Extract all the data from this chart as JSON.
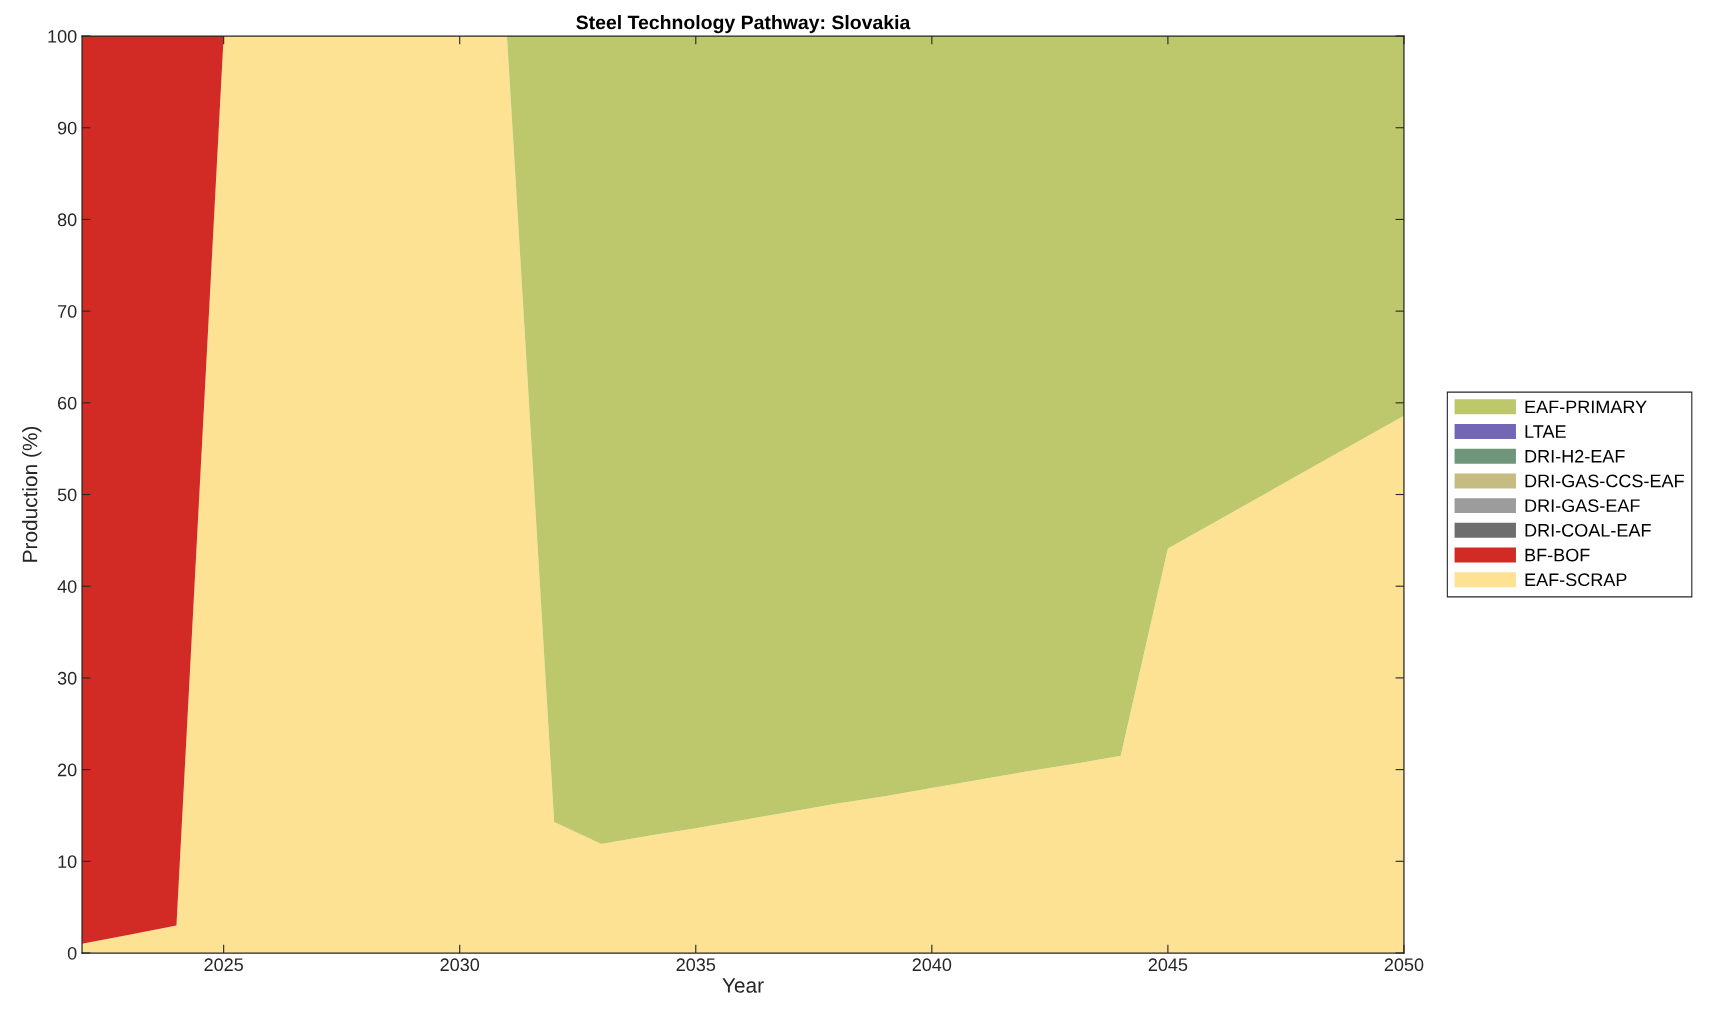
{
  "chart_data": {
    "type": "area",
    "stacked": true,
    "title": "Steel Technology Pathway: Slovakia",
    "xlabel": "Year",
    "ylabel": "Production (%)",
    "x": [
      2022,
      2023,
      2024,
      2025,
      2026,
      2027,
      2028,
      2029,
      2030,
      2031,
      2032,
      2033,
      2034,
      2035,
      2036,
      2037,
      2038,
      2039,
      2040,
      2041,
      2042,
      2043,
      2044,
      2045,
      2046,
      2047,
      2048,
      2049,
      2050
    ],
    "series": [
      {
        "name": "EAF-SCRAP",
        "color": "#fde294",
        "values": [
          1,
          2,
          3,
          100,
          100,
          100,
          100,
          100,
          100,
          100,
          14.3,
          11.9,
          12.8,
          13.6,
          14.5,
          15.4,
          16.3,
          17.1,
          18.0,
          18.9,
          19.8,
          20.6,
          21.5,
          44.1,
          47.0,
          49.9,
          52.8,
          55.7,
          58.6
        ]
      },
      {
        "name": "BF-BOF",
        "color": "#d22a24",
        "values": [
          99,
          98,
          97,
          0,
          0,
          0,
          0,
          0,
          0,
          0,
          0,
          0,
          0,
          0,
          0,
          0,
          0,
          0,
          0,
          0,
          0,
          0,
          0,
          0,
          0,
          0,
          0,
          0,
          0
        ]
      },
      {
        "name": "DRI-COAL-EAF",
        "color": "#6e6e6e",
        "values": [
          null,
          null,
          null,
          null,
          null,
          null,
          null,
          null,
          null,
          null,
          null,
          null,
          null,
          null,
          null,
          null,
          null,
          null,
          null,
          null,
          null,
          null,
          null,
          null,
          null,
          null,
          null,
          null,
          null
        ]
      },
      {
        "name": "DRI-GAS-EAF",
        "color": "#9c9c9c",
        "values": [
          null,
          null,
          null,
          null,
          null,
          null,
          null,
          null,
          null,
          null,
          null,
          null,
          null,
          null,
          null,
          null,
          null,
          null,
          null,
          null,
          null,
          null,
          null,
          null,
          null,
          null,
          null,
          null,
          null
        ]
      },
      {
        "name": "DRI-GAS-CCS-EAF",
        "color": "#c6bb80",
        "values": [
          null,
          null,
          null,
          null,
          null,
          null,
          null,
          null,
          null,
          null,
          null,
          null,
          null,
          null,
          null,
          null,
          null,
          null,
          null,
          null,
          null,
          null,
          null,
          null,
          null,
          null,
          null,
          null,
          null
        ]
      },
      {
        "name": "DRI-H2-EAF",
        "color": "#6f967a",
        "values": [
          null,
          null,
          null,
          null,
          null,
          null,
          null,
          null,
          null,
          null,
          null,
          null,
          null,
          null,
          null,
          null,
          null,
          null,
          null,
          null,
          null,
          null,
          null,
          null,
          null,
          null,
          null,
          null,
          null
        ]
      },
      {
        "name": "LTAE",
        "color": "#7366b5",
        "values": [
          null,
          null,
          null,
          null,
          null,
          null,
          null,
          null,
          null,
          null,
          null,
          null,
          null,
          null,
          null,
          null,
          null,
          null,
          null,
          null,
          null,
          null,
          null,
          null,
          null,
          null,
          null,
          null,
          null
        ]
      },
      {
        "name": "EAF-PRIMARY",
        "color": "#bdc86c",
        "values": [
          0,
          0,
          0,
          0,
          0,
          0,
          0,
          0,
          0,
          0,
          85.7,
          88.1,
          87.2,
          86.4,
          85.5,
          84.6,
          83.7,
          82.9,
          82.0,
          81.1,
          80.2,
          79.4,
          78.5,
          55.9,
          53.0,
          50.1,
          47.2,
          44.3,
          41.4
        ]
      }
    ],
    "xlim": [
      2022,
      2050
    ],
    "xticks": [
      2025,
      2030,
      2035,
      2040,
      2045,
      2050
    ],
    "ylim": [
      0,
      100
    ],
    "yticks": [
      0,
      10,
      20,
      30,
      40,
      50,
      60,
      70,
      80,
      90,
      100
    ],
    "legend": "right"
  }
}
